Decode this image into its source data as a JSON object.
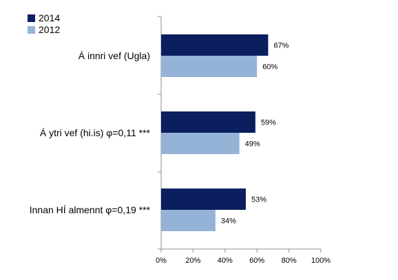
{
  "chart_data": {
    "type": "bar",
    "orientation": "horizontal",
    "categories": [
      "Á innri vef (Ugla)",
      "Á ytri vef (hi.is) φ=0,11 ***",
      "Innan HÍ almennt φ=0,19 ***"
    ],
    "series": [
      {
        "name": "2014",
        "color": "#0b1f5e",
        "values": [
          67,
          59,
          53
        ],
        "labels": [
          "67%",
          "59%",
          "53%"
        ]
      },
      {
        "name": "2012",
        "color": "#95b3d7",
        "values": [
          60,
          49,
          34
        ],
        "labels": [
          "60%",
          "49%",
          "34%"
        ]
      }
    ],
    "xlim": [
      0,
      100
    ],
    "xticks": [
      0,
      20,
      40,
      60,
      80,
      100
    ],
    "xtick_labels": [
      "0%",
      "20%",
      "40%",
      "60%",
      "80%",
      "100%"
    ],
    "grid": false,
    "legend_position": "top-left"
  }
}
